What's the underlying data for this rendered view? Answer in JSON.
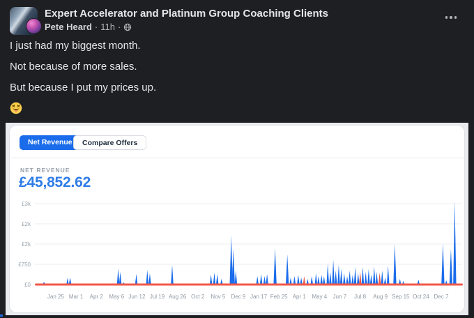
{
  "theme": {
    "page_bg": "#1e1f22",
    "accent_blue": "#1a6ceb",
    "metric_blue": "#2e7ce8",
    "red": "#f0584a"
  },
  "post": {
    "group_name": "Expert Accelerator and Platinum Group Coaching Clients",
    "author": "Pete Heard",
    "separator": "·",
    "timestamp": "11h",
    "audience_icon": "globe-icon",
    "menu_icon": "ellipsis-icon",
    "lines": [
      "I just had my biggest month.",
      "Not because of more sales.",
      "But because I put my prices up."
    ],
    "emoji": "😝"
  },
  "dashboard": {
    "tabs": [
      {
        "label": "Net Revenue",
        "active": true
      },
      {
        "label": "Compare Offers",
        "active": false
      }
    ],
    "metric_label": "NET REVENUE",
    "metric_value": "£45,852.62"
  },
  "chart_data": {
    "type": "bar",
    "title": "Net Revenue",
    "ylabel": "",
    "xlabel": "",
    "ylim": [
      0,
      3000
    ],
    "grid": true,
    "legend": false,
    "grid_color": "#eceef1",
    "tick_color": "#9aa5af",
    "bar_color": "#1a6ceb",
    "negative_color": "#e8564a",
    "baseline_color": "#f0584a",
    "y_ticks": [
      {
        "v": 0,
        "label": "£0"
      },
      {
        "v": 750,
        "label": "£750"
      },
      {
        "v": 1500,
        "label": "£2k"
      },
      {
        "v": 2250,
        "label": "£2k"
      },
      {
        "v": 3000,
        "label": "£3k"
      }
    ],
    "x_labels": [
      "Jan 25",
      "Mar 1",
      "Apr 2",
      "May 6",
      "Jun 12",
      "Jul 19",
      "Aug 26",
      "Oct 2",
      "Nov 5",
      "Dec 9",
      "Jan 17",
      "Feb 25",
      "Apr 1",
      "May 4",
      "Jun 7",
      "Jul 8",
      "Aug 9",
      "Sep 15",
      "Oct 24",
      "Dec 7"
    ],
    "spikes_note": "each spike = [position 0-1 along time axis, value in GBP, optional 1 = red/refund]",
    "spikes": [
      [
        0.015,
        100
      ],
      [
        0.071,
        250
      ],
      [
        0.077,
        260
      ],
      [
        0.191,
        600
      ],
      [
        0.196,
        470
      ],
      [
        0.204,
        80
      ],
      [
        0.234,
        390
      ],
      [
        0.26,
        540
      ],
      [
        0.266,
        420
      ],
      [
        0.319,
        730
      ],
      [
        0.411,
        365
      ],
      [
        0.419,
        440
      ],
      [
        0.426,
        390
      ],
      [
        0.436,
        210
      ],
      [
        0.459,
        1830
      ],
      [
        0.464,
        1330
      ],
      [
        0.47,
        520
      ],
      [
        0.521,
        310
      ],
      [
        0.53,
        390
      ],
      [
        0.538,
        310
      ],
      [
        0.544,
        390
      ],
      [
        0.563,
        1350
      ],
      [
        0.592,
        1120
      ],
      [
        0.6,
        260
      ],
      [
        0.609,
        310
      ],
      [
        0.618,
        365
      ],
      [
        0.625,
        260
      ],
      [
        0.632,
        310,
        1
      ],
      [
        0.64,
        210
      ],
      [
        0.65,
        310
      ],
      [
        0.66,
        420
      ],
      [
        0.666,
        310
      ],
      [
        0.673,
        365
      ],
      [
        0.679,
        310
      ],
      [
        0.688,
        780
      ],
      [
        0.694,
        470
      ],
      [
        0.701,
        915
      ],
      [
        0.707,
        520
      ],
      [
        0.714,
        730
      ],
      [
        0.72,
        575
      ],
      [
        0.727,
        420
      ],
      [
        0.734,
        310
      ],
      [
        0.74,
        520
      ],
      [
        0.747,
        365
      ],
      [
        0.753,
        650
      ],
      [
        0.76,
        420
      ],
      [
        0.765,
        470,
        1
      ],
      [
        0.771,
        650
      ],
      [
        0.778,
        470
      ],
      [
        0.785,
        575
      ],
      [
        0.791,
        365
      ],
      [
        0.798,
        680
      ],
      [
        0.804,
        470
      ],
      [
        0.811,
        440,
        1
      ],
      [
        0.817,
        520
      ],
      [
        0.824,
        260
      ],
      [
        0.831,
        700
      ],
      [
        0.847,
        1510
      ],
      [
        0.859,
        210
      ],
      [
        0.867,
        130
      ],
      [
        0.903,
        180
      ],
      [
        0.961,
        1540
      ],
      [
        0.969,
        155
      ],
      [
        0.98,
        1330
      ],
      [
        0.989,
        3100
      ]
    ]
  }
}
